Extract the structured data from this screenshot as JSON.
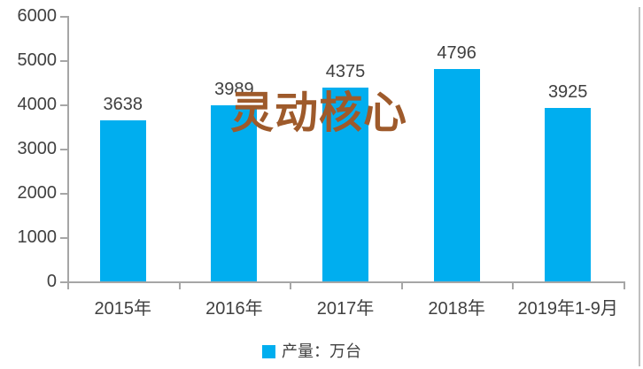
{
  "chart_data": {
    "type": "bar",
    "categories": [
      "2015年",
      "2016年",
      "2017年",
      "2018年",
      "2019年1-9月"
    ],
    "values": [
      3638,
      3989,
      4375,
      4796,
      3925
    ],
    "series_name": "产量：万台",
    "title": "",
    "xlabel": "",
    "ylabel": "",
    "ylim": [
      0,
      6000
    ],
    "ytick_step": 1000,
    "grid": false,
    "legend_position": "bottom-center",
    "bar_color": "#00AEEF"
  },
  "legend": {
    "label": "产量：万台"
  },
  "watermark": {
    "text": "灵动核心",
    "color": "#9E5A2B"
  },
  "colors": {
    "bar": "#00AEEF",
    "axis": "#A6A6A6",
    "text": "#404040",
    "watermark": "#9E5A2B",
    "right_border": "#BFBFBF"
  }
}
